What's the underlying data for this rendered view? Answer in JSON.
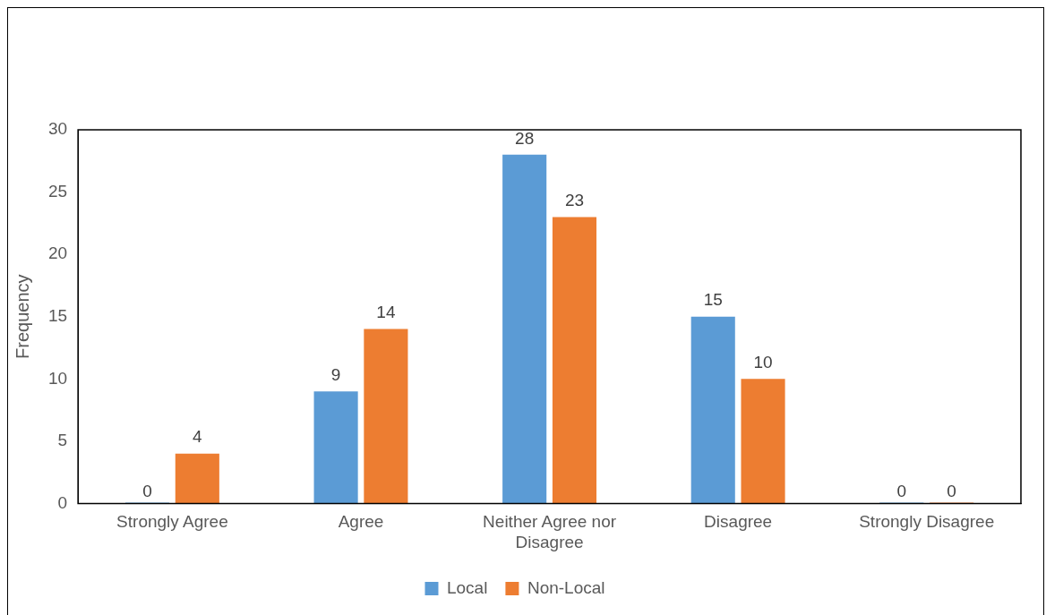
{
  "chart_data": {
    "type": "bar",
    "ylabel": "Frequency",
    "categories": [
      "Strongly Agree",
      "Agree",
      "Neither Agree nor Disagree",
      "Disagree",
      "Strongly Disagree"
    ],
    "series": [
      {
        "name": "Local",
        "color": "#5b9bd5",
        "values": [
          0,
          9,
          28,
          15,
          0
        ]
      },
      {
        "name": "Non-Local",
        "color": "#ed7d31",
        "values": [
          4,
          14,
          23,
          10,
          0
        ]
      }
    ],
    "ylim": [
      0,
      30
    ],
    "yticks": [
      0,
      5,
      10,
      15,
      20,
      25,
      30
    ],
    "grid": false,
    "legend": "bottom",
    "data_labels": true
  }
}
